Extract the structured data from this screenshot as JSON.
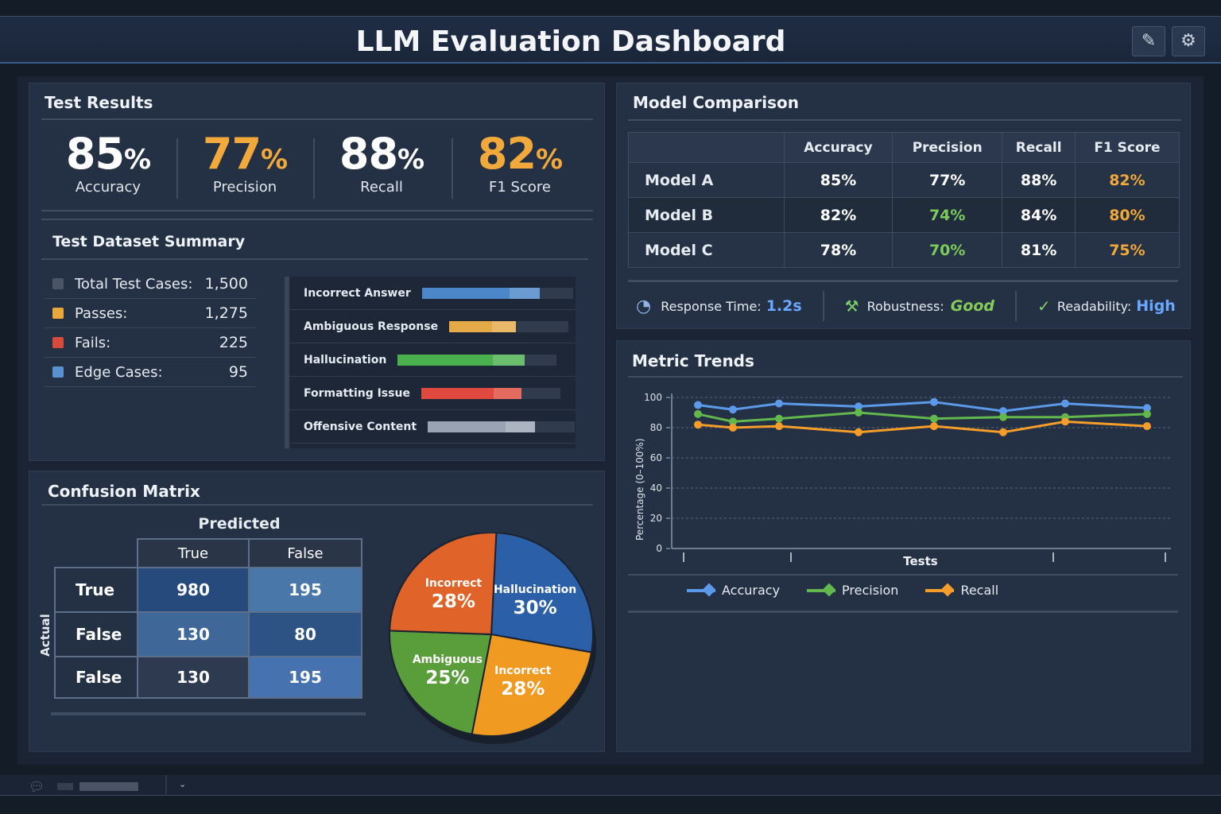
{
  "header": {
    "title": "LLM Evaluation Dashboard",
    "edit_icon": "pencil-icon",
    "settings_icon": "gear-icon"
  },
  "test_results": {
    "title": "Test Results",
    "metrics": [
      {
        "value": "85",
        "unit": "%",
        "label": "Accuracy",
        "color": "#ffffff"
      },
      {
        "value": "77",
        "unit": "%",
        "label": "Precision",
        "color": "#f2a93b"
      },
      {
        "value": "88",
        "unit": "%",
        "label": "Recall",
        "color": "#ffffff"
      },
      {
        "value": "82",
        "unit": "%",
        "label": "F1 Score",
        "color": "#f2a93b"
      }
    ]
  },
  "dataset_summary": {
    "title": "Test Dataset Summary",
    "rows": [
      {
        "label": "Total Test Cases:",
        "value": "1,500",
        "color": "#4a5568"
      },
      {
        "label": "Passes:",
        "value": "1,275",
        "color": "#e9a93a"
      },
      {
        "label": "Fails:",
        "value": "225",
        "color": "#d84a3c"
      },
      {
        "label": "Edge Cases:",
        "value": "95",
        "color": "#5a8fd0"
      }
    ]
  },
  "error_types": [
    {
      "label": "Incorrect Answer",
      "fill": 0.78,
      "color": "#4a86c8"
    },
    {
      "label": "Ambiguous Response",
      "fill": 0.56,
      "color": "#e4aa48"
    },
    {
      "label": "Hallucination",
      "fill": 0.8,
      "color": "#4ab04e"
    },
    {
      "label": "Formatting Issue",
      "fill": 0.72,
      "color": "#e04a3e"
    },
    {
      "label": "Offensive Content",
      "fill": 0.73,
      "color": "#9aa3b4"
    }
  ],
  "confusion": {
    "title": "Confusion Matrix",
    "predicted": "Predicted",
    "actual": "Actual",
    "cols": [
      "True",
      "False"
    ],
    "rows": [
      {
        "label": "True",
        "cells": [
          "980",
          "195"
        ]
      },
      {
        "label": "False",
        "cells": [
          "130",
          "80"
        ]
      },
      {
        "label": "False",
        "cells": [
          "130",
          "195"
        ]
      }
    ]
  },
  "pie": [
    {
      "label": "Hallucination",
      "value": 30,
      "color": "#2b5fa8"
    },
    {
      "label": "Incorrect",
      "value": 28,
      "color": "#f09a22"
    },
    {
      "label": "Ambiguous",
      "value": 25,
      "color": "#5a9e3c"
    },
    {
      "label": "Incorrect",
      "value": 28,
      "color": "#e0642a"
    }
  ],
  "model_comparison": {
    "title": "Model Comparison",
    "headers": [
      "",
      "Accuracy",
      "Precision",
      "Recall",
      "F1 Score"
    ],
    "rows": [
      {
        "model": "Model A",
        "values": [
          "85%",
          "77%",
          "88%",
          "82%"
        ]
      },
      {
        "model": "Model B",
        "values": [
          "82%",
          "74%",
          "84%",
          "80%"
        ]
      },
      {
        "model": "Model C",
        "values": [
          "78%",
          "70%",
          "81%",
          "75%"
        ]
      }
    ],
    "colors": [
      "#ffffff",
      "#ffffff",
      "#ffffff",
      "#f2a93b"
    ],
    "precision_color_bc": "#7ccc5c"
  },
  "stats": {
    "response_label": "Response Time:",
    "response_value": "1.2s",
    "robust_label": "Robustness:",
    "robust_value": "Good",
    "read_label": "Readability:",
    "read_value": "High"
  },
  "chart_data": {
    "type": "line",
    "title": "Metric Trends",
    "xlabel": "Tests",
    "ylabel": "Percentage (0–100%)",
    "ylim": [
      0,
      100
    ],
    "yticks": [
      0,
      20,
      40,
      60,
      80,
      100
    ],
    "grid": true,
    "legend": "bottom",
    "x": [
      1,
      2,
      3,
      4,
      5,
      6,
      7,
      8
    ],
    "series": [
      {
        "name": "Accuracy",
        "color": "#5b9ae8",
        "values": [
          95,
          92,
          96,
          94,
          97,
          91,
          96,
          93
        ]
      },
      {
        "name": "Precision",
        "color": "#62b84c",
        "values": [
          89,
          84,
          86,
          90,
          86,
          87,
          87,
          89
        ]
      },
      {
        "name": "Recall",
        "color": "#f59d2a",
        "values": [
          82,
          80,
          81,
          77,
          81,
          77,
          84,
          81
        ]
      }
    ]
  },
  "footer": {
    "chat_icon": "chat-icon",
    "dropdown_icon": "chevron-down-icon"
  }
}
